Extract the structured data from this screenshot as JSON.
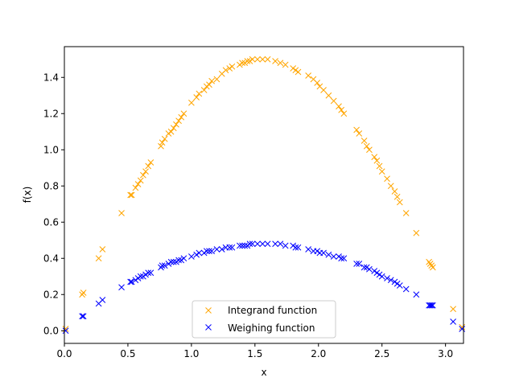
{
  "chart_data": {
    "type": "scatter",
    "xlabel": "x",
    "ylabel": "f(x)",
    "xlim": [
      0,
      3.1416
    ],
    "ylim": [
      -0.07,
      1.57
    ],
    "xticks": [
      "0.0",
      "0.5",
      "1.0",
      "1.5",
      "2.0",
      "2.5",
      "3.0"
    ],
    "xtick_values": [
      0,
      0.5,
      1.0,
      1.5,
      2.0,
      2.5,
      3.0
    ],
    "yticks": [
      "0.0",
      "0.2",
      "0.4",
      "0.6",
      "0.8",
      "1.0",
      "1.2",
      "1.4"
    ],
    "ytick_values": [
      0,
      0.2,
      0.4,
      0.6,
      0.8,
      1.0,
      1.2,
      1.4
    ],
    "marker": "x",
    "legend_position": "lower-center",
    "x": [
      0.01,
      0.14,
      0.15,
      0.27,
      0.3,
      0.45,
      0.52,
      0.53,
      0.56,
      0.58,
      0.6,
      0.62,
      0.64,
      0.66,
      0.68,
      0.76,
      0.77,
      0.79,
      0.82,
      0.84,
      0.86,
      0.88,
      0.9,
      0.92,
      0.94,
      1.0,
      1.04,
      1.06,
      1.1,
      1.12,
      1.14,
      1.16,
      1.2,
      1.24,
      1.27,
      1.3,
      1.32,
      1.38,
      1.4,
      1.42,
      1.44,
      1.46,
      1.48,
      1.52,
      1.56,
      1.6,
      1.66,
      1.7,
      1.74,
      1.8,
      1.82,
      1.84,
      1.92,
      1.96,
      1.99,
      2.01,
      2.04,
      2.08,
      2.12,
      2.16,
      2.18,
      2.2,
      2.3,
      2.32,
      2.36,
      2.38,
      2.4,
      2.44,
      2.46,
      2.48,
      2.5,
      2.54,
      2.57,
      2.6,
      2.62,
      2.64,
      2.69,
      2.77,
      2.87,
      2.88,
      2.89,
      2.9,
      3.06,
      3.13
    ],
    "series": [
      {
        "name": "Integrand function",
        "color": "#ffa500",
        "values": [
          0.01,
          0.2,
          0.21,
          0.4,
          0.45,
          0.65,
          0.75,
          0.75,
          0.79,
          0.81,
          0.83,
          0.86,
          0.88,
          0.91,
          0.93,
          1.02,
          1.04,
          1.06,
          1.09,
          1.1,
          1.12,
          1.14,
          1.16,
          1.18,
          1.2,
          1.26,
          1.29,
          1.31,
          1.33,
          1.35,
          1.36,
          1.38,
          1.39,
          1.42,
          1.44,
          1.45,
          1.46,
          1.47,
          1.48,
          1.48,
          1.49,
          1.49,
          1.5,
          1.5,
          1.5,
          1.5,
          1.49,
          1.48,
          1.47,
          1.45,
          1.44,
          1.43,
          1.41,
          1.39,
          1.37,
          1.35,
          1.33,
          1.3,
          1.27,
          1.24,
          1.22,
          1.2,
          1.11,
          1.09,
          1.05,
          1.02,
          1.0,
          0.96,
          0.94,
          0.91,
          0.88,
          0.84,
          0.8,
          0.77,
          0.74,
          0.71,
          0.65,
          0.54,
          0.38,
          0.37,
          0.36,
          0.35,
          0.12,
          0.02
        ]
      },
      {
        "name": "Weighing function",
        "color": "#0000ff",
        "values": [
          0.0,
          0.08,
          0.08,
          0.15,
          0.17,
          0.24,
          0.27,
          0.27,
          0.28,
          0.29,
          0.3,
          0.3,
          0.31,
          0.32,
          0.32,
          0.35,
          0.36,
          0.36,
          0.37,
          0.38,
          0.38,
          0.38,
          0.39,
          0.39,
          0.4,
          0.41,
          0.42,
          0.43,
          0.43,
          0.44,
          0.44,
          0.44,
          0.45,
          0.45,
          0.46,
          0.46,
          0.46,
          0.47,
          0.47,
          0.47,
          0.47,
          0.48,
          0.48,
          0.48,
          0.48,
          0.48,
          0.48,
          0.48,
          0.47,
          0.47,
          0.46,
          0.46,
          0.45,
          0.44,
          0.44,
          0.43,
          0.43,
          0.42,
          0.41,
          0.41,
          0.4,
          0.4,
          0.37,
          0.37,
          0.35,
          0.35,
          0.34,
          0.33,
          0.32,
          0.31,
          0.3,
          0.29,
          0.28,
          0.27,
          0.26,
          0.25,
          0.23,
          0.2,
          0.14,
          0.14,
          0.14,
          0.14,
          0.05,
          0.01
        ]
      }
    ]
  }
}
